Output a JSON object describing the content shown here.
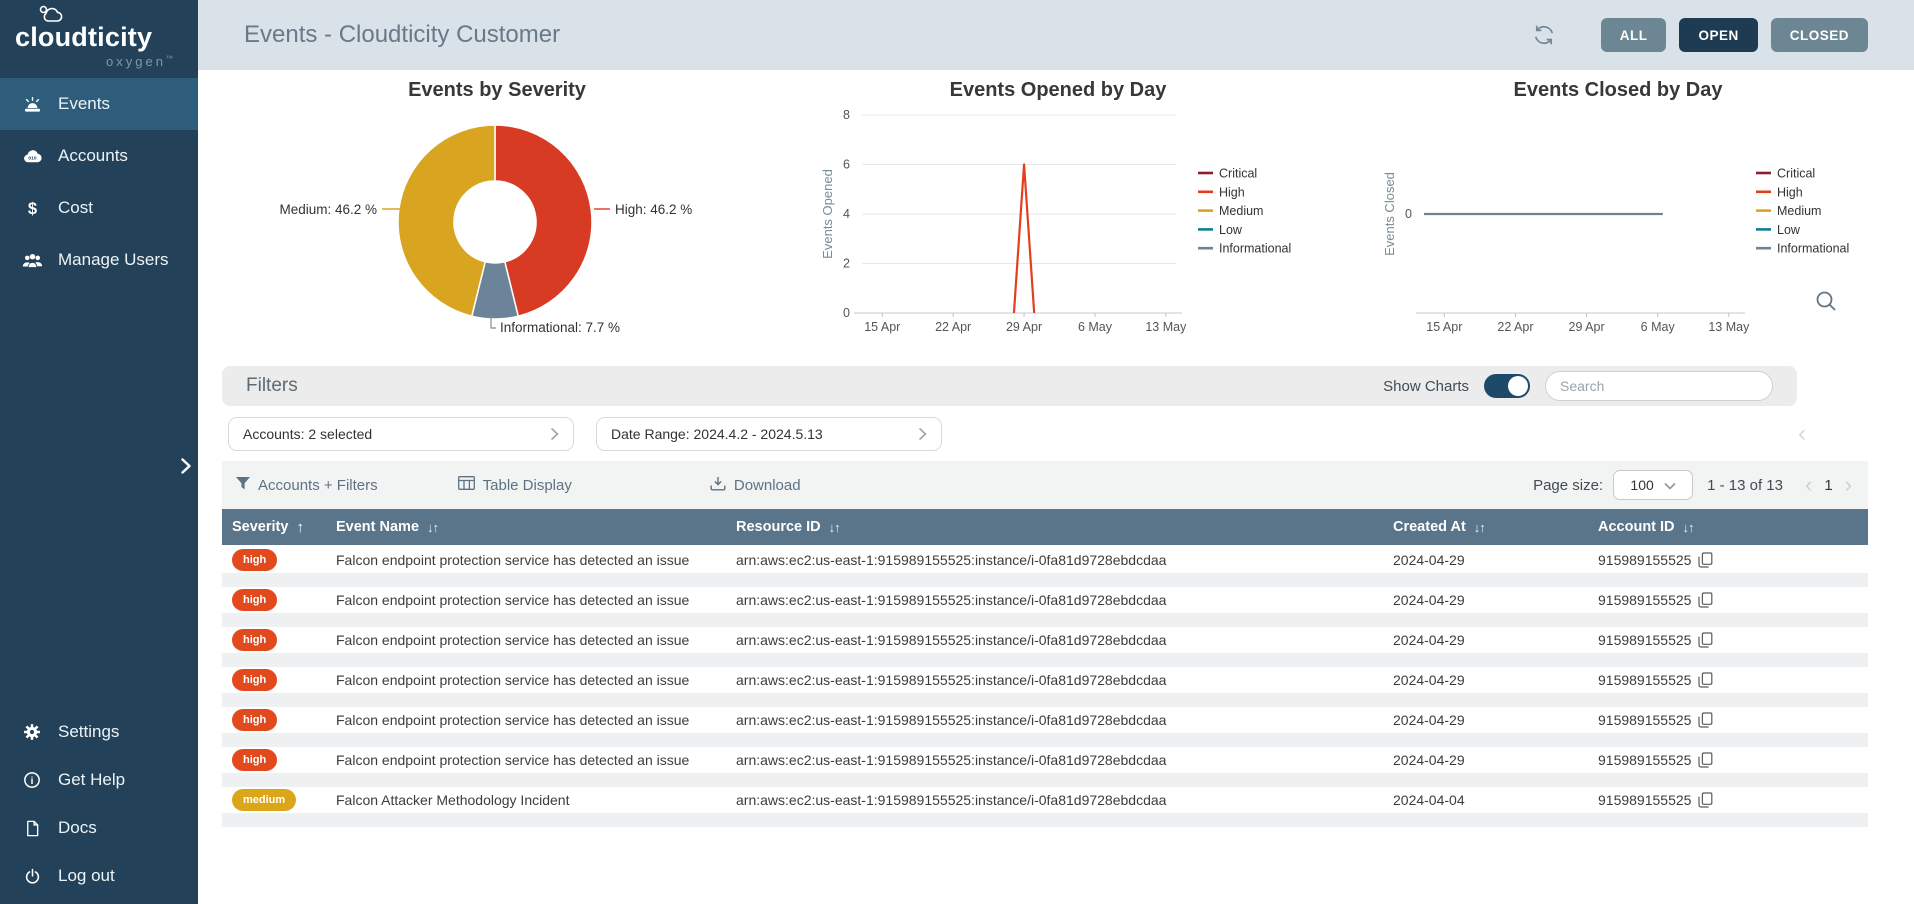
{
  "brand": {
    "name": "cloudticity",
    "sub": "oxygen",
    "tm": "™"
  },
  "header": {
    "title": "Events - Cloudticity Customer",
    "buttons": [
      {
        "label": "ALL",
        "active": false
      },
      {
        "label": "OPEN",
        "active": true
      },
      {
        "label": "CLOSED",
        "active": false
      }
    ]
  },
  "sidebar": {
    "items": [
      {
        "label": "Events",
        "icon": "siren-icon",
        "active": true
      },
      {
        "label": "Accounts",
        "icon": "cloud-icon",
        "active": false
      },
      {
        "label": "Cost",
        "icon": "dollar-icon",
        "active": false
      },
      {
        "label": "Manage Users",
        "icon": "users-icon",
        "active": false
      }
    ],
    "bottom_items": [
      {
        "label": "Settings",
        "icon": "gear-icon"
      },
      {
        "label": "Get Help",
        "icon": "info-icon"
      },
      {
        "label": "Docs",
        "icon": "doc-icon"
      },
      {
        "label": "Log out",
        "icon": "power-icon"
      }
    ]
  },
  "chart_data": [
    {
      "type": "pie",
      "donut": true,
      "title": "Events by Severity",
      "slices": [
        {
          "label": "High",
          "value": 46.2,
          "color": "#d83b24"
        },
        {
          "label": "Informational",
          "value": 7.7,
          "color": "#6b8499"
        },
        {
          "label": "Medium",
          "value": 46.2,
          "color": "#d9a521"
        }
      ],
      "unit": "%"
    },
    {
      "type": "line",
      "title": "Events Opened by Day",
      "ylabel": "Events Opened",
      "ylim": [
        0,
        8
      ],
      "yticks": [
        0,
        2,
        4,
        6,
        8
      ],
      "xlim": [
        0,
        31
      ],
      "xticks": [
        {
          "label": "15 Apr",
          "x": 2
        },
        {
          "label": "22 Apr",
          "x": 9
        },
        {
          "label": "29 Apr",
          "x": 16
        },
        {
          "label": "6 May",
          "x": 23
        },
        {
          "label": "13 May",
          "x": 30
        }
      ],
      "legend": [
        {
          "name": "Critical",
          "color": "#8c1e2d"
        },
        {
          "name": "High",
          "color": "#e2401d"
        },
        {
          "name": "Medium",
          "color": "#d9a521"
        },
        {
          "name": "Low",
          "color": "#0e7f95"
        },
        {
          "name": "Informational",
          "color": "#6b8499"
        }
      ],
      "legend_position": "right",
      "grid": true,
      "series": [
        {
          "name": "High",
          "color": "#e2401d",
          "points": [
            [
              15,
              0
            ],
            [
              16,
              6
            ],
            [
              17,
              0
            ]
          ]
        }
      ]
    },
    {
      "type": "line",
      "title": "Events Closed by Day",
      "ylabel": "Events Closed",
      "ylim": [
        -1,
        1
      ],
      "yticks": [
        0
      ],
      "xlim": [
        0,
        31
      ],
      "xticks": [
        {
          "label": "15 Apr",
          "x": 2
        },
        {
          "label": "22 Apr",
          "x": 9
        },
        {
          "label": "29 Apr",
          "x": 16
        },
        {
          "label": "6 May",
          "x": 23
        },
        {
          "label": "13 May",
          "x": 30
        }
      ],
      "legend": [
        {
          "name": "Critical",
          "color": "#8c1e2d"
        },
        {
          "name": "High",
          "color": "#e2401d"
        },
        {
          "name": "Medium",
          "color": "#d9a521"
        },
        {
          "name": "Low",
          "color": "#0e7f95"
        },
        {
          "name": "Informational",
          "color": "#6b8499"
        }
      ],
      "legend_position": "right",
      "grid": false,
      "series": [
        {
          "name": "Informational",
          "color": "#6b8499",
          "points": [
            [
              0,
              0
            ],
            [
              23.5,
              0
            ]
          ]
        }
      ]
    }
  ],
  "filters": {
    "title": "Filters",
    "show_charts_label": "Show Charts",
    "show_charts_on": true,
    "search_placeholder": "Search",
    "pills": [
      {
        "name": "accounts-filter-pill",
        "label": "Accounts: 2 selected"
      },
      {
        "name": "date-range-pill",
        "label": "Date Range: 2024.4.2 - 2024.5.13"
      }
    ]
  },
  "toolbar": {
    "accounts_filters_label": "Accounts + Filters",
    "table_display_label": "Table Display",
    "download_label": "Download",
    "page_size_label": "Page size:",
    "page_size_value": "100",
    "range_label": "1 - 13 of 13",
    "current_page": "1"
  },
  "table": {
    "columns": [
      {
        "label": "Severity",
        "sort": "up"
      },
      {
        "label": "Event Name",
        "sort": "updown"
      },
      {
        "label": "Resource ID",
        "sort": "updown"
      },
      {
        "label": "Created At",
        "sort": "updown"
      },
      {
        "label": "Account ID",
        "sort": "updown"
      }
    ],
    "rows": [
      {
        "severity": "high",
        "event_name": "Falcon endpoint protection service has detected an issue",
        "resource_id": "arn:aws:ec2:us-east-1:915989155525:instance/i-0fa81d9728ebdcdaa",
        "created_at": "2024-04-29",
        "account_id": "915989155525"
      },
      {
        "severity": "high",
        "event_name": "Falcon endpoint protection service has detected an issue",
        "resource_id": "arn:aws:ec2:us-east-1:915989155525:instance/i-0fa81d9728ebdcdaa",
        "created_at": "2024-04-29",
        "account_id": "915989155525"
      },
      {
        "severity": "high",
        "event_name": "Falcon endpoint protection service has detected an issue",
        "resource_id": "arn:aws:ec2:us-east-1:915989155525:instance/i-0fa81d9728ebdcdaa",
        "created_at": "2024-04-29",
        "account_id": "915989155525"
      },
      {
        "severity": "high",
        "event_name": "Falcon endpoint protection service has detected an issue",
        "resource_id": "arn:aws:ec2:us-east-1:915989155525:instance/i-0fa81d9728ebdcdaa",
        "created_at": "2024-04-29",
        "account_id": "915989155525"
      },
      {
        "severity": "high",
        "event_name": "Falcon endpoint protection service has detected an issue",
        "resource_id": "arn:aws:ec2:us-east-1:915989155525:instance/i-0fa81d9728ebdcdaa",
        "created_at": "2024-04-29",
        "account_id": "915989155525"
      },
      {
        "severity": "high",
        "event_name": "Falcon endpoint protection service has detected an issue",
        "resource_id": "arn:aws:ec2:us-east-1:915989155525:instance/i-0fa81d9728ebdcdaa",
        "created_at": "2024-04-29",
        "account_id": "915989155525"
      },
      {
        "severity": "medium",
        "event_name": "Falcon Attacker Methodology Incident",
        "resource_id": "arn:aws:ec2:us-east-1:915989155525:instance/i-0fa81d9728ebdcdaa",
        "created_at": "2024-04-04",
        "account_id": "915989155525"
      }
    ]
  },
  "colors": {
    "sidebar_bg": "#234259",
    "sidebar_active_bg": "#2e5d7b",
    "header_bg": "#d9e2e8",
    "button_bg": "#6d8694",
    "button_active_bg": "#1d3b52",
    "table_header_bg": "#5a7489",
    "badge_high": "#e2491d",
    "badge_medium": "#dba617",
    "toggle_on": "#1d4a68"
  }
}
